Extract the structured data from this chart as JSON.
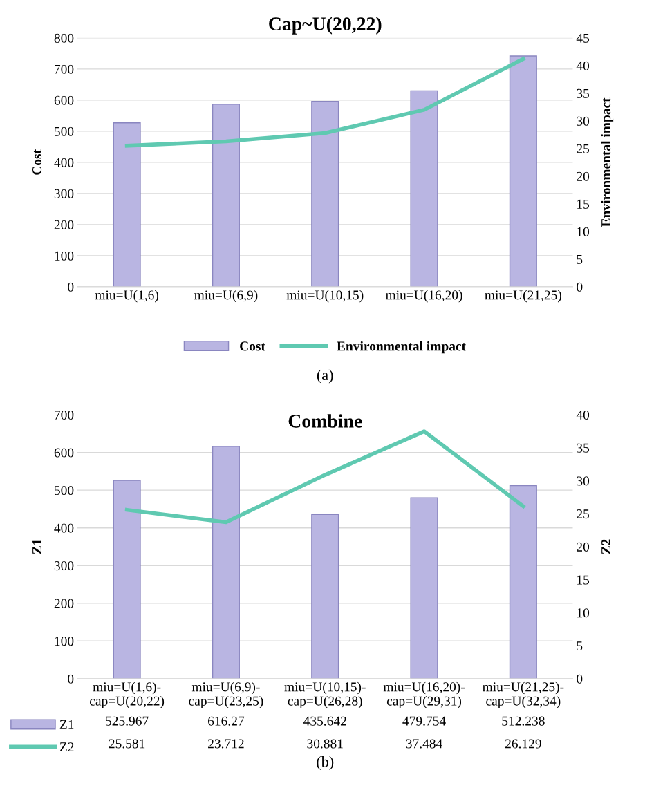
{
  "chart_data": [
    {
      "type": "bar",
      "title": "Cap~U(20,22)",
      "ylabel": "Cost",
      "y2label": "Environmental impact",
      "categories": [
        "miu=U(1,6)",
        "miu=U(6,9)",
        "miu=U(10,15)",
        "miu=U(16,20)",
        "miu=U(21,25)"
      ],
      "series": [
        {
          "name": "Cost",
          "color": "#b9b5e2",
          "values": [
            527,
            587,
            596,
            630,
            742
          ]
        },
        {
          "name": "Environmental impact",
          "type": "line",
          "axis": "y2",
          "color": "#5fc9b1",
          "values": [
            25.5,
            26.3,
            27.8,
            32,
            41.2
          ]
        }
      ],
      "ylim": [
        0,
        800
      ],
      "yticks": [
        0,
        100,
        200,
        300,
        400,
        500,
        600,
        700,
        800
      ],
      "y2lim": [
        0,
        45
      ],
      "y2ticks": [
        0,
        5,
        10,
        15,
        20,
        25,
        30,
        35,
        40,
        45
      ],
      "grid": "y",
      "legend": "bottom",
      "marker": "none",
      "line_style": "solid",
      "annotations": [
        "(a)"
      ]
    },
    {
      "type": "bar",
      "title": "Combine",
      "ylabel": "Z1",
      "y2label": "Z2",
      "categories": [
        "miu=U(1,6)-\ncap=U(20,22)",
        "miu=U(6,9)-\ncap=U(23,25)",
        "miu=U(10,15)-\ncap=U(26,28)",
        "miu=U(16,20)-\ncap=U(29,31)",
        "miu=U(21,25)-\ncap=U(32,34)"
      ],
      "series": [
        {
          "name": "Z1",
          "color": "#b9b5e2",
          "values": [
            525.967,
            616.27,
            435.642,
            479.754,
            512.238
          ]
        },
        {
          "name": "Z2",
          "type": "line",
          "axis": "y2",
          "color": "#5fc9b1",
          "values": [
            25.581,
            23.712,
            30.881,
            37.484,
            26.129
          ]
        }
      ],
      "ylim": [
        0,
        700
      ],
      "yticks": [
        0,
        100,
        200,
        300,
        400,
        500,
        600,
        700
      ],
      "y2lim": [
        0,
        40
      ],
      "y2ticks": [
        0,
        5,
        10,
        15,
        20,
        25,
        30,
        35,
        40
      ],
      "grid": "y",
      "legend": "bottom left",
      "marker": "none",
      "line_style": "solid",
      "data_labels": true,
      "annotations": [
        "(b)"
      ]
    }
  ]
}
